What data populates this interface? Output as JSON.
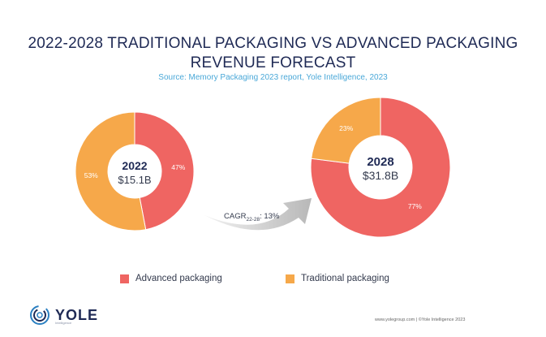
{
  "header": {
    "title_line1": "2022-2028 TRADITIONAL PACKAGING VS ADVANCED PACKAGING",
    "title_line2": "REVENUE FORECAST",
    "subtitle": "Source: Memory Packaging 2023 report, Yole Intelligence, 2023"
  },
  "chart_data": [
    {
      "type": "pie",
      "title": "2022",
      "total_label": "$15.1B",
      "slices": [
        {
          "name": "Advanced packaging",
          "value": 47,
          "label": "47%",
          "color": "#ef6562"
        },
        {
          "name": "Traditional packaging",
          "value": 53,
          "label": "53%",
          "color": "#f6a84a"
        }
      ]
    },
    {
      "type": "pie",
      "title": "2028",
      "total_label": "$31.8B",
      "slices": [
        {
          "name": "Advanced packaging",
          "value": 77,
          "label": "77%",
          "color": "#ef6562"
        },
        {
          "name": "Traditional packaging",
          "value": 23,
          "label": "23%",
          "color": "#f6a84a"
        }
      ]
    }
  ],
  "cagr": {
    "prefix": "CAGR",
    "subscript": "22-28",
    "suffix": ": 13%"
  },
  "legend": [
    {
      "label": "Advanced packaging",
      "color": "#ef6562"
    },
    {
      "label": "Traditional packaging",
      "color": "#f6a84a"
    }
  ],
  "brand": {
    "logo_text": "YOLE",
    "logo_sub": "Intelligence"
  },
  "footer": {
    "text": "www.yolegroup.com | ©Yole Intelligence 2023"
  }
}
